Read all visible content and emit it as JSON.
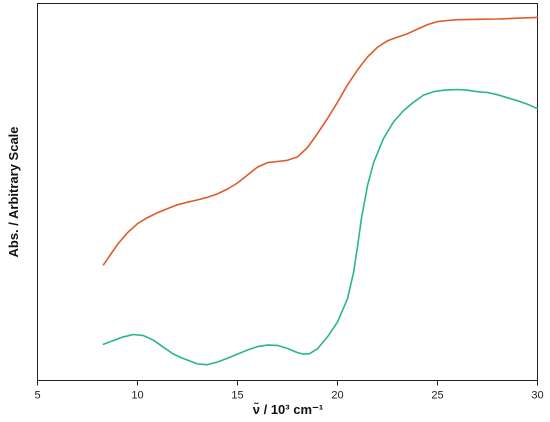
{
  "chart_data": {
    "type": "line",
    "xlabel": "ν̃ / 10³ cm⁻¹",
    "ylabel": "Abs. / Arbitrary Scale",
    "xlim": [
      5,
      30
    ],
    "ylim": [
      0,
      1
    ],
    "x_ticks": [
      5,
      10,
      15,
      20,
      25,
      30
    ],
    "y_ticks_shown": false,
    "grid": false,
    "legend": "none",
    "series": [
      {
        "color": "#e05a2b",
        "points": [
          [
            8.3,
            0.307
          ],
          [
            9.0,
            0.361
          ],
          [
            9.5,
            0.392
          ],
          [
            10.0,
            0.416
          ],
          [
            10.5,
            0.432
          ],
          [
            11.0,
            0.445
          ],
          [
            11.5,
            0.456
          ],
          [
            12.0,
            0.466
          ],
          [
            12.5,
            0.473
          ],
          [
            13.0,
            0.479
          ],
          [
            13.5,
            0.486
          ],
          [
            14.0,
            0.495
          ],
          [
            14.5,
            0.508
          ],
          [
            15.0,
            0.524
          ],
          [
            15.5,
            0.545
          ],
          [
            16.0,
            0.566
          ],
          [
            16.5,
            0.578
          ],
          [
            17.0,
            0.581
          ],
          [
            17.5,
            0.584
          ],
          [
            18.0,
            0.593
          ],
          [
            18.5,
            0.618
          ],
          [
            19.0,
            0.655
          ],
          [
            19.5,
            0.695
          ],
          [
            20.0,
            0.738
          ],
          [
            20.5,
            0.784
          ],
          [
            21.0,
            0.824
          ],
          [
            21.5,
            0.858
          ],
          [
            22.0,
            0.884
          ],
          [
            22.5,
            0.901
          ],
          [
            23.0,
            0.911
          ],
          [
            23.5,
            0.92
          ],
          [
            24.0,
            0.932
          ],
          [
            24.5,
            0.944
          ],
          [
            25.0,
            0.952
          ],
          [
            25.5,
            0.955
          ],
          [
            26.0,
            0.957
          ],
          [
            27.0,
            0.958
          ],
          [
            28.0,
            0.959
          ],
          [
            29.0,
            0.961
          ],
          [
            30.0,
            0.963
          ]
        ]
      },
      {
        "color": "#2bb58a",
        "points": [
          [
            8.3,
            0.096
          ],
          [
            8.8,
            0.106
          ],
          [
            9.3,
            0.116
          ],
          [
            9.8,
            0.122
          ],
          [
            10.3,
            0.119
          ],
          [
            10.8,
            0.107
          ],
          [
            11.3,
            0.088
          ],
          [
            11.8,
            0.07
          ],
          [
            12.3,
            0.058
          ],
          [
            12.7,
            0.05
          ],
          [
            13.0,
            0.044
          ],
          [
            13.5,
            0.042
          ],
          [
            14.0,
            0.049
          ],
          [
            14.5,
            0.059
          ],
          [
            15.0,
            0.07
          ],
          [
            15.5,
            0.081
          ],
          [
            16.0,
            0.09
          ],
          [
            16.5,
            0.094
          ],
          [
            17.0,
            0.093
          ],
          [
            17.5,
            0.085
          ],
          [
            18.0,
            0.074
          ],
          [
            18.3,
            0.07
          ],
          [
            18.6,
            0.071
          ],
          [
            19.0,
            0.084
          ],
          [
            19.5,
            0.116
          ],
          [
            20.0,
            0.155
          ],
          [
            20.5,
            0.217
          ],
          [
            20.8,
            0.286
          ],
          [
            21.0,
            0.355
          ],
          [
            21.2,
            0.431
          ],
          [
            21.5,
            0.517
          ],
          [
            21.8,
            0.577
          ],
          [
            22.3,
            0.642
          ],
          [
            22.8,
            0.686
          ],
          [
            23.3,
            0.716
          ],
          [
            23.8,
            0.738
          ],
          [
            24.3,
            0.757
          ],
          [
            24.8,
            0.766
          ],
          [
            25.3,
            0.77
          ],
          [
            26.0,
            0.772
          ],
          [
            26.5,
            0.77
          ],
          [
            27.0,
            0.766
          ],
          [
            27.5,
            0.764
          ],
          [
            28.0,
            0.758
          ],
          [
            28.5,
            0.75
          ],
          [
            29.0,
            0.742
          ],
          [
            29.5,
            0.733
          ],
          [
            30.0,
            0.721
          ]
        ]
      }
    ]
  }
}
